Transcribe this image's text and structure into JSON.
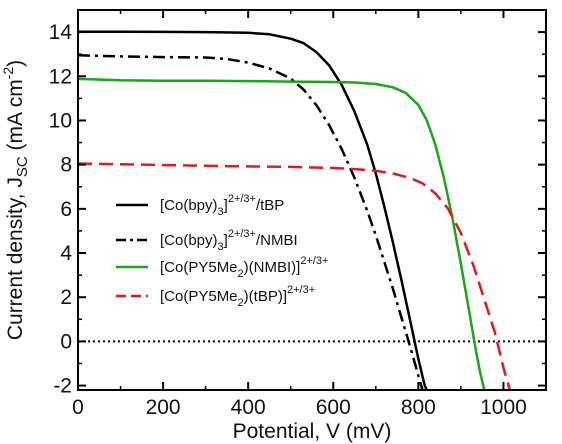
{
  "chart_data": {
    "type": "line",
    "xlabel": "Potential, V (mV)",
    "ylabel": "Current density, J",
    "ylabel_sub": "SC",
    "ylabel_units": " (mA cm",
    "ylabel_units_sup": "-2",
    "ylabel_close": ")",
    "xlim": [
      0,
      1100
    ],
    "ylim": [
      -2.2,
      15
    ],
    "x_ticks": [
      0,
      200,
      400,
      600,
      800,
      1000
    ],
    "y_ticks": [
      -2,
      0,
      2,
      4,
      6,
      8,
      10,
      12,
      14
    ],
    "reference_line": {
      "y": 0,
      "style": "dotted"
    },
    "grid": false,
    "legend_position": "center-left",
    "series": [
      {
        "legend": {
          "base": "[Co(bpy)",
          "sub": "3",
          "close": "]",
          "sup": "2+/3+",
          "tail": "/tBP"
        },
        "color": "#000000",
        "dash": "solid",
        "x": [
          0,
          100,
          200,
          300,
          400,
          450,
          500,
          530,
          560,
          590,
          620,
          650,
          680,
          700,
          720,
          740,
          760,
          780,
          800,
          815,
          820
        ],
        "y": [
          14.02,
          14.02,
          14.01,
          14.0,
          13.97,
          13.9,
          13.7,
          13.5,
          13.1,
          12.5,
          11.6,
          10.4,
          8.9,
          7.6,
          6.1,
          4.5,
          2.8,
          1.0,
          -0.8,
          -2.0,
          -2.2
        ]
      },
      {
        "legend": {
          "base": "[Co(bpy)",
          "sub": "3",
          "close": "]",
          "sup": "2+/3+",
          "tail": "/NMBI"
        },
        "color": "#000000",
        "dash": "dashdot",
        "x": [
          0,
          100,
          200,
          300,
          350,
          400,
          450,
          500,
          530,
          560,
          590,
          620,
          650,
          680,
          700,
          720,
          740,
          760,
          780,
          795,
          805,
          810
        ],
        "y": [
          12.95,
          12.9,
          12.87,
          12.85,
          12.78,
          12.62,
          12.35,
          11.9,
          11.4,
          10.7,
          9.8,
          8.7,
          7.4,
          5.9,
          4.8,
          3.6,
          2.4,
          1.1,
          -0.2,
          -1.2,
          -1.9,
          -2.2
        ]
      },
      {
        "legend": {
          "base": "[Co(PY5Me",
          "sub": "2",
          "close": ")(NMBI)]",
          "sup": "2+/3+",
          "tail": ""
        },
        "color": "#1aa51a",
        "dash": "solid",
        "x": [
          0,
          100,
          200,
          300,
          400,
          500,
          600,
          650,
          700,
          740,
          770,
          800,
          820,
          840,
          860,
          880,
          900,
          920,
          935,
          945,
          955
        ],
        "y": [
          11.88,
          11.82,
          11.8,
          11.8,
          11.78,
          11.76,
          11.74,
          11.72,
          11.65,
          11.5,
          11.25,
          10.7,
          10.0,
          8.9,
          7.4,
          5.6,
          3.5,
          1.3,
          -0.4,
          -1.4,
          -2.2
        ]
      },
      {
        "legend": {
          "base": "[Co(PY5Me",
          "sub": "2",
          "close": ")(tBP)]",
          "sup": "2+/3+",
          "tail": ""
        },
        "color": "#e31a1c",
        "dash": "dashed",
        "x": [
          0,
          100,
          200,
          300,
          400,
          500,
          600,
          650,
          700,
          740,
          780,
          810,
          840,
          870,
          900,
          930,
          960,
          980,
          1000,
          1015
        ],
        "y": [
          8.05,
          8.02,
          7.98,
          7.95,
          7.92,
          7.9,
          7.85,
          7.8,
          7.72,
          7.6,
          7.4,
          7.15,
          6.7,
          6.0,
          4.9,
          3.4,
          1.6,
          0.4,
          -1.2,
          -2.2
        ]
      }
    ]
  }
}
